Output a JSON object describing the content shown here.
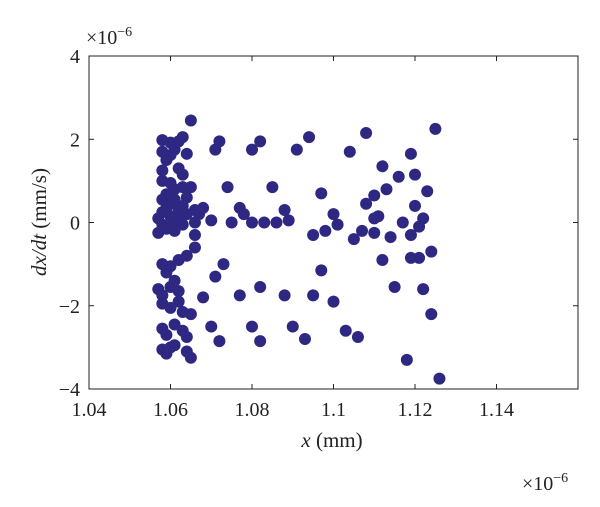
{
  "chart_data": {
    "type": "scatter",
    "title": "",
    "xlabel_var": "x",
    "xlabel_unit": " (mm)",
    "ylabel_var": "dx/dt",
    "ylabel_unit": " (mm/s)",
    "x_exponent": "×10",
    "x_exponent_power": "−6",
    "y_exponent": "×10",
    "y_exponent_power": "−6",
    "xlim": [
      1.04,
      1.16
    ],
    "ylim": [
      -4,
      4
    ],
    "xticks": [
      1.04,
      1.06,
      1.08,
      1.1,
      1.12,
      1.14
    ],
    "xtick_labels": [
      "1.04",
      "1.06",
      "1.08",
      "1.1",
      "1.12",
      "1.14"
    ],
    "yticks": [
      -4,
      -2,
      0,
      2,
      4
    ],
    "ytick_labels": [
      "−4",
      "−2",
      "0",
      "2",
      "4"
    ],
    "grid": false,
    "marker_color": "#2e2883",
    "series": [
      {
        "points": [
          [
            1.058,
            1.98
          ],
          [
            1.06,
            1.92
          ],
          [
            1.062,
            1.95
          ],
          [
            1.063,
            2.05
          ],
          [
            1.065,
            2.45
          ],
          [
            1.058,
            1.7
          ],
          [
            1.06,
            1.62
          ],
          [
            1.061,
            1.75
          ],
          [
            1.064,
            1.65
          ],
          [
            1.059,
            1.5
          ],
          [
            1.058,
            1.25
          ],
          [
            1.062,
            1.3
          ],
          [
            1.058,
            1.0
          ],
          [
            1.06,
            0.95
          ],
          [
            1.063,
            1.15
          ],
          [
            1.058,
            0.55
          ],
          [
            1.059,
            0.68
          ],
          [
            1.061,
            0.8
          ],
          [
            1.063,
            0.85
          ],
          [
            1.065,
            0.85
          ],
          [
            1.057,
            0.1
          ],
          [
            1.058,
            0.25
          ],
          [
            1.059,
            0.35
          ],
          [
            1.06,
            0.45
          ],
          [
            1.06,
            0.15
          ],
          [
            1.061,
            0.05
          ],
          [
            1.061,
            0.55
          ],
          [
            1.062,
            0.3
          ],
          [
            1.062,
            0.1
          ],
          [
            1.063,
            0.4
          ],
          [
            1.063,
            -0.05
          ],
          [
            1.064,
            0.2
          ],
          [
            1.064,
            0.6
          ],
          [
            1.058,
            -0.05
          ],
          [
            1.059,
            -0.15
          ],
          [
            1.057,
            -0.25
          ],
          [
            1.06,
            -0.1
          ],
          [
            1.061,
            -0.2
          ],
          [
            1.066,
            0.0
          ],
          [
            1.066,
            0.3
          ],
          [
            1.058,
            -1.0
          ],
          [
            1.06,
            -1.05
          ],
          [
            1.062,
            -0.9
          ],
          [
            1.064,
            -0.8
          ],
          [
            1.059,
            -1.2
          ],
          [
            1.057,
            -1.6
          ],
          [
            1.058,
            -1.75
          ],
          [
            1.06,
            -1.55
          ],
          [
            1.061,
            -1.4
          ],
          [
            1.062,
            -1.65
          ],
          [
            1.058,
            -1.95
          ],
          [
            1.06,
            -2.05
          ],
          [
            1.062,
            -1.9
          ],
          [
            1.063,
            -2.15
          ],
          [
            1.065,
            -2.2
          ],
          [
            1.058,
            -2.55
          ],
          [
            1.059,
            -2.7
          ],
          [
            1.061,
            -2.45
          ],
          [
            1.063,
            -2.6
          ],
          [
            1.064,
            -2.75
          ],
          [
            1.058,
            -3.05
          ],
          [
            1.059,
            -3.15
          ],
          [
            1.06,
            -3.0
          ],
          [
            1.061,
            -2.95
          ],
          [
            1.064,
            -3.1
          ],
          [
            1.065,
            -3.25
          ],
          [
            1.066,
            -0.3
          ],
          [
            1.066,
            -0.6
          ],
          [
            1.067,
            0.2
          ],
          [
            1.068,
            0.35
          ],
          [
            1.07,
            0.05
          ],
          [
            1.071,
            1.75
          ],
          [
            1.072,
            1.95
          ],
          [
            1.074,
            0.85
          ],
          [
            1.075,
            0.0
          ],
          [
            1.073,
            -1.0
          ],
          [
            1.068,
            -1.8
          ],
          [
            1.07,
            -2.5
          ],
          [
            1.072,
            -2.85
          ],
          [
            1.071,
            -1.3
          ],
          [
            1.077,
            0.35
          ],
          [
            1.078,
            0.2
          ],
          [
            1.08,
            1.75
          ],
          [
            1.082,
            1.95
          ],
          [
            1.08,
            0.0
          ],
          [
            1.083,
            0.0
          ],
          [
            1.085,
            0.85
          ],
          [
            1.077,
            -1.75
          ],
          [
            1.08,
            -2.5
          ],
          [
            1.082,
            -2.85
          ],
          [
            1.082,
            -1.55
          ],
          [
            1.086,
            0.0
          ],
          [
            1.088,
            0.3
          ],
          [
            1.089,
            0.05
          ],
          [
            1.091,
            1.75
          ],
          [
            1.094,
            2.05
          ],
          [
            1.088,
            -1.75
          ],
          [
            1.09,
            -2.5
          ],
          [
            1.093,
            -2.8
          ],
          [
            1.095,
            -0.3
          ],
          [
            1.097,
            0.7
          ],
          [
            1.098,
            -0.2
          ],
          [
            1.097,
            -1.15
          ],
          [
            1.1,
            0.2
          ],
          [
            1.101,
            -0.05
          ],
          [
            1.1,
            -1.9
          ],
          [
            1.103,
            -2.6
          ],
          [
            1.104,
            1.7
          ],
          [
            1.105,
            -0.4
          ],
          [
            1.106,
            -2.75
          ],
          [
            1.107,
            -0.2
          ],
          [
            1.108,
            2.15
          ],
          [
            1.108,
            0.45
          ],
          [
            1.11,
            0.65
          ],
          [
            1.111,
            0.15
          ],
          [
            1.112,
            1.35
          ],
          [
            1.112,
            -0.9
          ],
          [
            1.113,
            0.8
          ],
          [
            1.114,
            -0.35
          ],
          [
            1.116,
            1.1
          ],
          [
            1.115,
            -1.55
          ],
          [
            1.117,
            0.0
          ],
          [
            1.119,
            1.65
          ],
          [
            1.12,
            1.15
          ],
          [
            1.119,
            -0.3
          ],
          [
            1.118,
            -3.3
          ],
          [
            1.119,
            -0.85
          ],
          [
            1.121,
            -0.85
          ],
          [
            1.121,
            -0.1
          ],
          [
            1.122,
            0.1
          ],
          [
            1.123,
            0.75
          ],
          [
            1.122,
            -1.6
          ],
          [
            1.124,
            -0.7
          ],
          [
            1.125,
            2.25
          ],
          [
            1.124,
            -2.2
          ],
          [
            1.126,
            -3.75
          ],
          [
            1.11,
            -0.25
          ],
          [
            1.12,
            0.4
          ],
          [
            1.11,
            0.1
          ],
          [
            1.095,
            -1.75
          ]
        ]
      }
    ]
  }
}
